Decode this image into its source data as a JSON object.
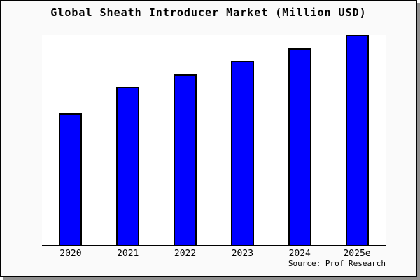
{
  "title": "Global Sheath Introducer Market (Million USD)",
  "source_label": "Source: Prof Research",
  "colors": {
    "bar_fill": "#0000ff",
    "bar_outline": "#000000",
    "frame_background": "#fafafa",
    "plot_background": "#ffffff",
    "frame_border": "#000000",
    "frame_shadow": "#8f8f8f",
    "text": "#000000"
  },
  "chart_data": {
    "type": "bar",
    "title": "Global Sheath Introducer Market (Million USD)",
    "categories": [
      "2020",
      "2021",
      "2022",
      "2023",
      "2024",
      "2025e"
    ],
    "values": [
      62.7,
      75.2,
      81.3,
      87.8,
      93.7,
      100
    ],
    "values_note": "No numeric y-axis is shown in the image; values are relative bar heights estimated from pixels, scaled so 2025e = 100",
    "xlabel": "",
    "ylabel": "",
    "ylim": [
      0,
      100
    ],
    "grid": false,
    "legend": null,
    "annotations": [
      "Source: Prof Research"
    ]
  }
}
